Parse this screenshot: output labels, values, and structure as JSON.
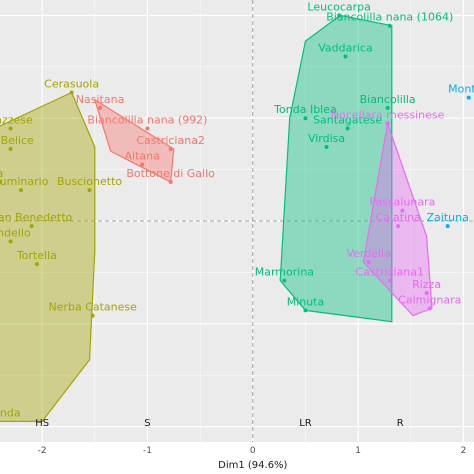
{
  "chart_data": {
    "type": "scatter",
    "xlabel": "Dim1 (94.6%)",
    "ylabel": "",
    "xlim": [
      -2.4,
      2.1
    ],
    "ylim": [
      -2.15,
      2.15
    ],
    "x_ticks": [
      -2,
      -1,
      0,
      1,
      2
    ],
    "grid": true,
    "colors": {
      "HS": "#a3a500",
      "S": "#f8766d",
      "LR": "#00bf7d",
      "R": "#e76bf3",
      "other": "#00b0f6"
    },
    "group_axis_labels": [
      {
        "label": "HS",
        "x": -2.0
      },
      {
        "label": "S",
        "x": -1.0
      },
      {
        "label": "LR",
        "x": 0.5
      },
      {
        "label": "R",
        "x": 1.4
      }
    ],
    "hulls": [
      {
        "group": "HS",
        "points": [
          [
            -1.72,
            1.25
          ],
          [
            -1.5,
            0.72
          ],
          [
            -1.5,
            -0.3
          ],
          [
            -1.55,
            -1.35
          ],
          [
            -2.0,
            -1.95
          ],
          [
            -2.45,
            -1.95
          ],
          [
            -2.45,
            0.9
          ]
        ]
      },
      {
        "group": "S",
        "points": [
          [
            -1.5,
            1.18
          ],
          [
            -0.75,
            0.7
          ],
          [
            -0.78,
            0.38
          ],
          [
            -1.35,
            0.68
          ]
        ]
      },
      {
        "group": "LR",
        "points": [
          [
            0.5,
            1.75
          ],
          [
            0.83,
            2.0
          ],
          [
            1.32,
            1.9
          ],
          [
            1.32,
            -0.98
          ],
          [
            0.5,
            -0.87
          ],
          [
            0.26,
            -0.58
          ],
          [
            0.35,
            1.0
          ]
        ]
      },
      {
        "group": "R",
        "points": [
          [
            1.28,
            0.95
          ],
          [
            1.65,
            -0.15
          ],
          [
            1.7,
            -0.85
          ],
          [
            1.52,
            -0.92
          ],
          [
            1.05,
            -0.4
          ]
        ]
      }
    ],
    "series": [
      {
        "name": "HS",
        "points": [
          {
            "label": "Cerasuola",
            "x": -1.72,
            "y": 1.25
          },
          {
            "label": "dazzese",
            "x": -2.3,
            "y": 0.9
          },
          {
            "label": "ei Belice",
            "x": -2.3,
            "y": 0.7
          },
          {
            "label": "a",
            "x": -2.4,
            "y": 0.38
          },
          {
            "label": "Luminario",
            "x": -2.2,
            "y": 0.3
          },
          {
            "label": "Buscionetto",
            "x": -1.55,
            "y": 0.3
          },
          {
            "label": "San Benedetto",
            "x": -2.1,
            "y": -0.05
          },
          {
            "label": "ondello",
            "x": -2.3,
            "y": -0.2
          },
          {
            "label": "Tortella",
            "x": -2.05,
            "y": -0.42
          },
          {
            "label": "Nerba Catanese",
            "x": -1.52,
            "y": -0.92
          },
          {
            "label": "Gioconda",
            "x": -2.45,
            "y": -1.95
          }
        ]
      },
      {
        "name": "S",
        "points": [
          {
            "label": "Nasitana",
            "x": -1.45,
            "y": 1.1
          },
          {
            "label": "Biancolilla nana (992)",
            "x": -1.0,
            "y": 0.9
          },
          {
            "label": "Castriciana2",
            "x": -0.78,
            "y": 0.7
          },
          {
            "label": "Aitana",
            "x": -1.05,
            "y": 0.55
          },
          {
            "label": "Bottone di Gallo",
            "x": -0.78,
            "y": 0.38
          }
        ]
      },
      {
        "name": "LR",
        "points": [
          {
            "label": "Leucocarpa",
            "x": 0.82,
            "y": 2.0
          },
          {
            "label": "Biancolilla nana (1064)",
            "x": 1.3,
            "y": 1.9
          },
          {
            "label": "Vaddarica",
            "x": 0.88,
            "y": 1.6
          },
          {
            "label": "Biancolilla",
            "x": 1.28,
            "y": 1.1
          },
          {
            "label": "Tonda Iblea",
            "x": 0.5,
            "y": 1.0
          },
          {
            "label": "Santagatese",
            "x": 0.9,
            "y": 0.9
          },
          {
            "label": "Virdisa",
            "x": 0.7,
            "y": 0.72
          },
          {
            "label": "Marmorina",
            "x": 0.3,
            "y": -0.58
          },
          {
            "label": "Minuta",
            "x": 0.5,
            "y": -0.87
          }
        ]
      },
      {
        "name": "R",
        "points": [
          {
            "label": "Nocellara messinese",
            "x": 1.28,
            "y": 0.95
          },
          {
            "label": "Passalunara",
            "x": 1.42,
            "y": 0.1
          },
          {
            "label": "Calatina",
            "x": 1.38,
            "y": -0.05
          },
          {
            "label": "Verdella",
            "x": 1.1,
            "y": -0.4
          },
          {
            "label": "Castriciana1",
            "x": 1.3,
            "y": -0.58
          },
          {
            "label": "Rizza",
            "x": 1.65,
            "y": -0.7
          },
          {
            "label": "Calmignara",
            "x": 1.68,
            "y": -0.85
          }
        ]
      },
      {
        "name": "other",
        "points": [
          {
            "label": "Monton",
            "x": 2.05,
            "y": 1.2
          },
          {
            "label": "Zaituna",
            "x": 1.85,
            "y": -0.05
          }
        ]
      }
    ]
  }
}
